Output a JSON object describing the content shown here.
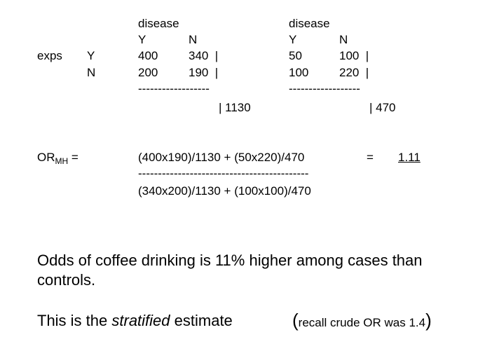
{
  "table1": {
    "header": "disease",
    "col_y": "Y",
    "col_n": "N",
    "row_y": [
      "400",
      "340  |"
    ],
    "row_n": [
      "200",
      "190  |"
    ],
    "dashes": "------------------",
    "total": "| 1130"
  },
  "table2": {
    "header": "disease",
    "col_y": "Y",
    "col_n": "N",
    "row_y": [
      "50",
      "100  |"
    ],
    "row_n": [
      "100",
      "220  |"
    ],
    "dashes": "------------------",
    "total": "| 470"
  },
  "rows": {
    "exposure_label": "exps",
    "y_label": "Y",
    "n_label": "N"
  },
  "formula": {
    "or": "OR",
    "or_sub": "MH",
    "equals_after_label": " =",
    "numerator": "(400x190)/1130 + (50x220)/470",
    "equals": "=",
    "result": "1.11",
    "divider": "-------------------------------------------",
    "denominator": "(340x200)/1130 + (100x100)/470"
  },
  "conclusion": {
    "line1": "Odds of coffee drinking is 11% higher among cases than",
    "line2": "controls.",
    "stratified_prefix": "This is the ",
    "stratified_word": "stratified",
    "stratified_suffix": " estimate",
    "open_paren": "(",
    "recall": "recall crude OR was 1.4",
    "close_paren": ")"
  }
}
